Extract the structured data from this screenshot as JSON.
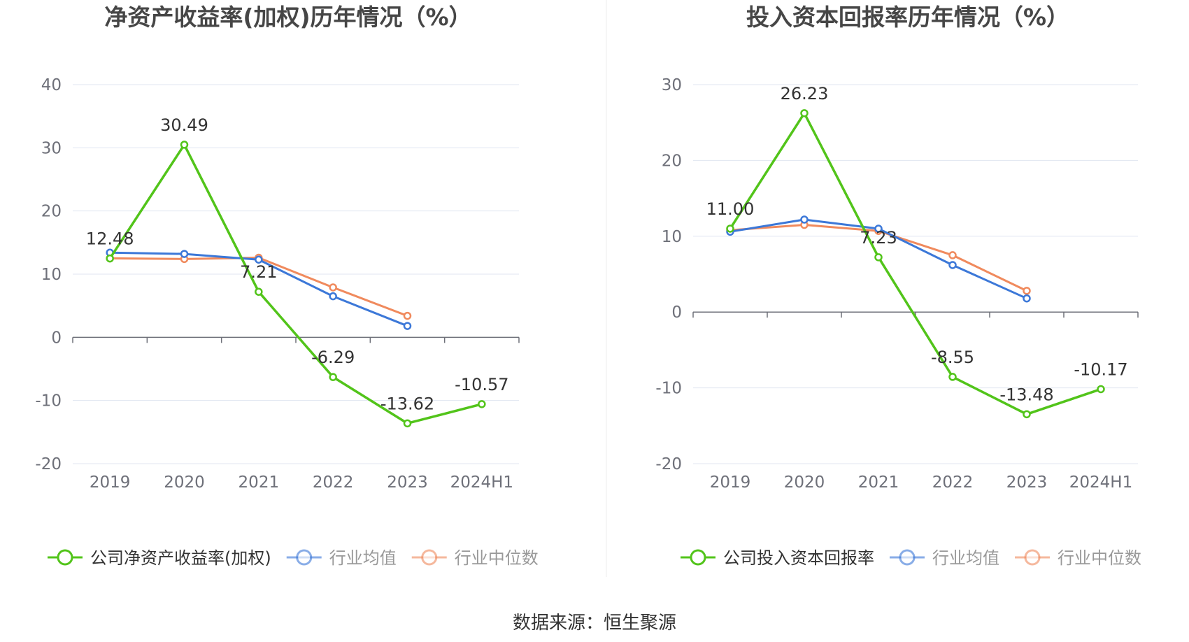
{
  "source": "数据来源：恒生聚源",
  "colors": {
    "company": "#52c41a",
    "avg": "#3c78d8",
    "median": "#f08a5d",
    "axis": "#6e7079",
    "grid": "#e0e6f1",
    "tick_text": "#6e7079",
    "title": "#464646"
  },
  "chart_data": [
    {
      "type": "line",
      "title": "净资产收益率(加权)历年情况（%）",
      "categories": [
        "2019",
        "2020",
        "2021",
        "2022",
        "2023",
        "2024H1"
      ],
      "ylim": [
        -20,
        40
      ],
      "yticks": [
        "40",
        "30",
        "20",
        "10",
        "0",
        "-10",
        "-20"
      ],
      "grid": true,
      "legend_position": "bottom",
      "series": [
        {
          "name": "公司净资产收益率(加权)",
          "role": "company",
          "values": [
            12.48,
            30.49,
            7.21,
            -6.29,
            -13.62,
            -10.57
          ],
          "labels": [
            "12.48",
            "30.49",
            "7.21",
            "-6.29",
            "-13.62",
            "-10.57"
          ]
        },
        {
          "name": "行业均值",
          "role": "avg",
          "values": [
            13.4,
            13.2,
            12.3,
            6.5,
            1.8,
            null
          ]
        },
        {
          "name": "行业中位数",
          "role": "median",
          "values": [
            12.5,
            12.4,
            12.6,
            7.9,
            3.4,
            null
          ]
        }
      ]
    },
    {
      "type": "line",
      "title": "投入资本回报率历年情况（%）",
      "categories": [
        "2019",
        "2020",
        "2021",
        "2022",
        "2023",
        "2024H1"
      ],
      "ylim": [
        -20,
        30
      ],
      "yticks": [
        "30",
        "20",
        "10",
        "0",
        "-10",
        "-20"
      ],
      "grid": true,
      "legend_position": "bottom",
      "series": [
        {
          "name": "公司投入资本回报率",
          "role": "company",
          "values": [
            11.0,
            26.23,
            7.23,
            -8.55,
            -13.48,
            -10.17
          ],
          "labels": [
            "11.00",
            "26.23",
            "7.23",
            "-8.55",
            "-13.48",
            "-10.17"
          ]
        },
        {
          "name": "行业均值",
          "role": "avg",
          "values": [
            10.6,
            12.2,
            11.0,
            6.2,
            1.8,
            null
          ]
        },
        {
          "name": "行业中位数",
          "role": "median",
          "values": [
            10.8,
            11.5,
            10.7,
            7.5,
            2.8,
            null
          ]
        }
      ]
    }
  ]
}
